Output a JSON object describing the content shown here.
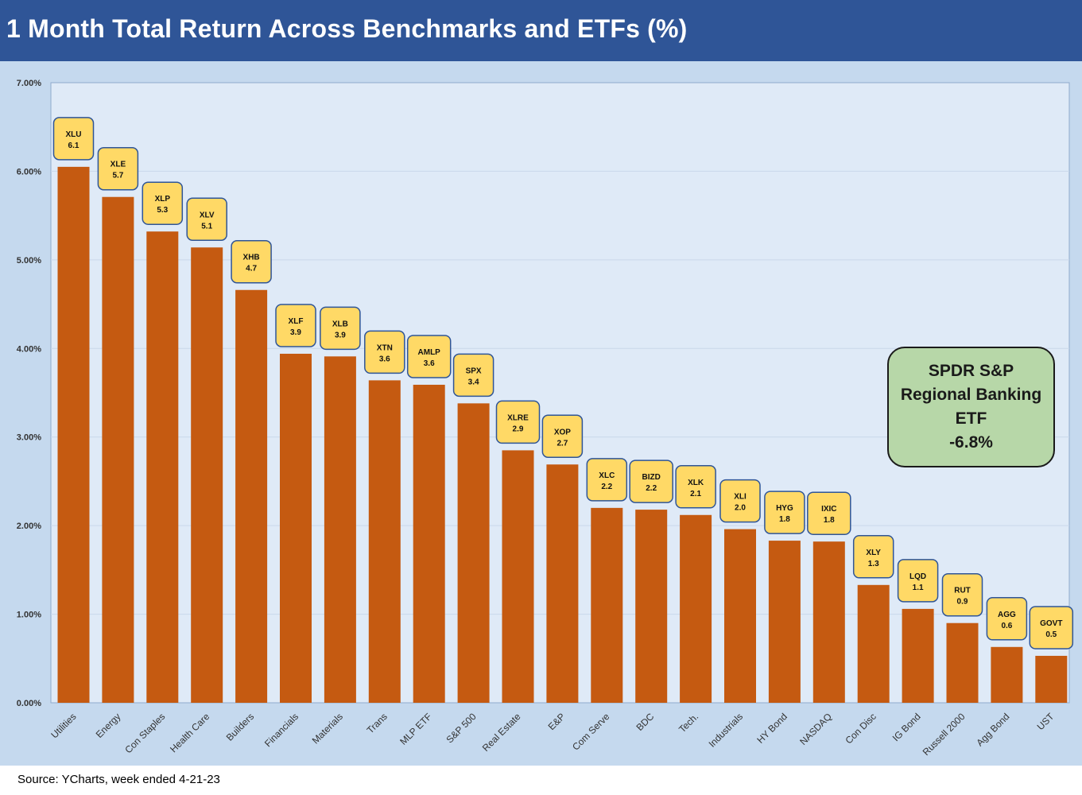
{
  "header": {
    "title": "1 Month Total Return Across Benchmarks and ETFs (%)"
  },
  "footer": {
    "source": "Source: YCharts, week ended 4-21-23"
  },
  "callout": {
    "lines": [
      "SPDR S&P",
      "Regional Banking",
      "ETF",
      "-6.8%"
    ]
  },
  "colors": {
    "bar": "#c55a11",
    "label_box": "#ffd966",
    "plot_bg": "#dfeaf7",
    "outer_bg": "#c5d9ee",
    "header_bg": "#2f5597",
    "callout_bg": "#b7d7a8"
  },
  "chart_data": {
    "type": "bar",
    "title": "1 Month Total Return Across Benchmarks and ETFs (%)",
    "xlabel": "",
    "ylabel": "",
    "ylim": [
      0,
      7
    ],
    "y_ticks": [
      "0.00%",
      "1.00%",
      "2.00%",
      "3.00%",
      "4.00%",
      "5.00%",
      "6.00%",
      "7.00%"
    ],
    "grid": true,
    "categories": [
      "Utilities",
      "Energy",
      "Con Staples",
      "Health Care",
      "Builders",
      "Financials",
      "Materials",
      "Trans",
      "MLP ETF",
      "S&P 500",
      "Real Estate",
      "E&P",
      "Com Serve",
      "BDC",
      "Tech.",
      "Industrials",
      "HY Bond",
      "NASDAQ",
      "Con Disc",
      "IG Bond",
      "Russell 2000",
      "Agg Bond",
      "UST"
    ],
    "values": [
      6.05,
      5.71,
      5.32,
      5.14,
      4.66,
      3.94,
      3.91,
      3.64,
      3.59,
      3.38,
      2.85,
      2.69,
      2.2,
      2.18,
      2.12,
      1.96,
      1.83,
      1.82,
      1.33,
      1.06,
      0.9,
      0.63,
      0.53
    ],
    "labels": [
      {
        "ticker": "XLU",
        "value": "6.1"
      },
      {
        "ticker": "XLE",
        "value": "5.7"
      },
      {
        "ticker": "XLP",
        "value": "5.3"
      },
      {
        "ticker": "XLV",
        "value": "5.1"
      },
      {
        "ticker": "XHB",
        "value": "4.7"
      },
      {
        "ticker": "XLF",
        "value": "3.9"
      },
      {
        "ticker": "XLB",
        "value": "3.9"
      },
      {
        "ticker": "XTN",
        "value": "3.6"
      },
      {
        "ticker": "AMLP",
        "value": "3.6"
      },
      {
        "ticker": "SPX",
        "value": "3.4"
      },
      {
        "ticker": "XLRE",
        "value": "2.9"
      },
      {
        "ticker": "XOP",
        "value": "2.7"
      },
      {
        "ticker": "XLC",
        "value": "2.2"
      },
      {
        "ticker": "BIZD",
        "value": "2.2"
      },
      {
        "ticker": "XLK",
        "value": "2.1"
      },
      {
        "ticker": "XLI",
        "value": "2.0"
      },
      {
        "ticker": "HYG",
        "value": "1.8"
      },
      {
        "ticker": "IXIC",
        "value": "1.8"
      },
      {
        "ticker": "XLY",
        "value": "1.3"
      },
      {
        "ticker": "LQD",
        "value": "1.1"
      },
      {
        "ticker": "RUT",
        "value": "0.9"
      },
      {
        "ticker": "AGG",
        "value": "0.6"
      },
      {
        "ticker": "GOVT",
        "value": "0.5"
      }
    ]
  }
}
